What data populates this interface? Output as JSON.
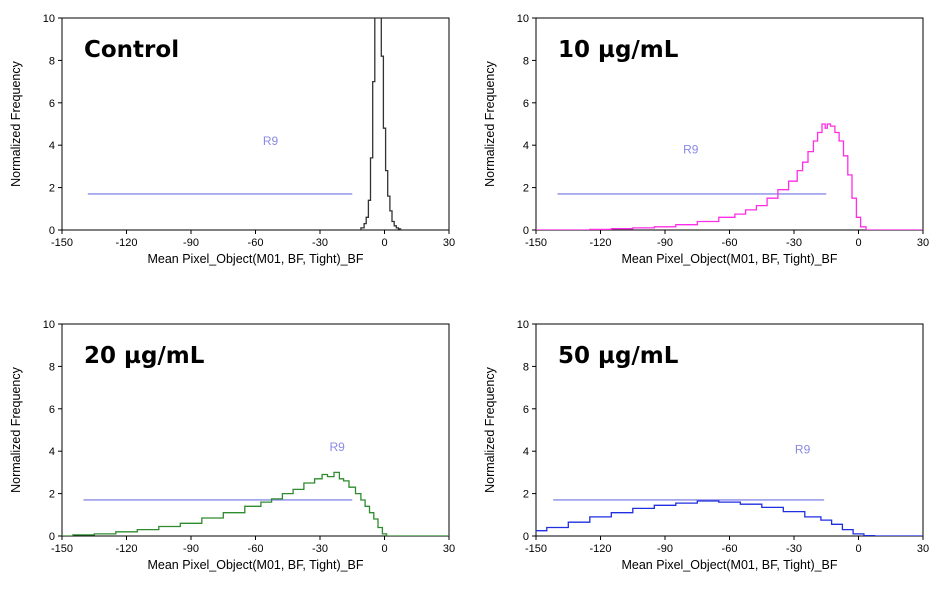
{
  "chart_data": [
    {
      "type": "line",
      "title": "Control",
      "xlabel": "Mean Pixel_Object(M01, BF, Tight)_BF",
      "ylabel": "Normalized Frequency",
      "xlim": [
        -150,
        30
      ],
      "ylim": [
        0,
        10
      ],
      "x_ticks": [
        "-150",
        "-120",
        "-90",
        "-60",
        "-30",
        "0",
        "30"
      ],
      "y_ticks": [
        "0",
        "2",
        "4",
        "6",
        "8",
        "10"
      ],
      "color": "#333333",
      "region": {
        "label": "R9",
        "x_start": -138,
        "x_end": -15,
        "y": 1.7,
        "label_x": -53,
        "label_y": 4.0,
        "color": "#8a8ae6"
      },
      "series": [
        {
          "x": [
            -30,
            -12,
            -10,
            -9,
            -8,
            -7,
            -6,
            -5,
            -4,
            -3,
            -2,
            -1,
            0,
            1,
            2,
            3,
            4,
            5,
            6,
            7,
            8,
            10,
            15,
            30
          ],
          "values": [
            0,
            0,
            0.1,
            0.3,
            0.6,
            1.4,
            3.4,
            7.0,
            10.5,
            11,
            10.6,
            8.2,
            4.8,
            2.8,
            1.6,
            0.9,
            0.4,
            0.2,
            0.1,
            0.05,
            0,
            0,
            0,
            0
          ]
        }
      ]
    },
    {
      "type": "line",
      "title": "10 µg/mL",
      "xlabel": "Mean Pixel_Object(M01, BF, Tight)_BF",
      "ylabel": "Normalized Frequency",
      "xlim": [
        -150,
        30
      ],
      "ylim": [
        0,
        10
      ],
      "x_ticks": [
        "-150",
        "-120",
        "-90",
        "-60",
        "-30",
        "0",
        "30"
      ],
      "y_ticks": [
        "0",
        "2",
        "4",
        "6",
        "8",
        "10"
      ],
      "color": "#ff2ee6",
      "region": {
        "label": "R9",
        "x_start": -140,
        "x_end": -15,
        "y": 1.7,
        "label_x": -78,
        "label_y": 3.6,
        "color": "#8a8ae6"
      },
      "series": [
        {
          "x": [
            -150,
            -130,
            -120,
            -110,
            -100,
            -90,
            -80,
            -70,
            -60,
            -55,
            -50,
            -45,
            -40,
            -35,
            -30,
            -27,
            -25,
            -22,
            -20,
            -18,
            -16,
            -15,
            -14,
            -12,
            -10,
            -8,
            -6,
            -4,
            -2,
            0,
            2,
            5,
            10,
            30
          ],
          "values": [
            0,
            0,
            0.03,
            0.06,
            0.1,
            0.15,
            0.25,
            0.4,
            0.6,
            0.75,
            0.95,
            1.15,
            1.5,
            1.9,
            2.3,
            2.8,
            3.2,
            3.7,
            4.2,
            4.6,
            5.0,
            4.8,
            5.0,
            4.9,
            4.6,
            4.2,
            3.5,
            2.6,
            1.5,
            0.6,
            0.15,
            0,
            0,
            0
          ]
        }
      ]
    },
    {
      "type": "line",
      "title": "20 µg/mL",
      "xlabel": "Mean Pixel_Object(M01, BF, Tight)_BF",
      "ylabel": "Normalized Frequency",
      "xlim": [
        -150,
        30
      ],
      "ylim": [
        0,
        10
      ],
      "x_ticks": [
        "-150",
        "-120",
        "-90",
        "-60",
        "-30",
        "0",
        "30"
      ],
      "y_ticks": [
        "0",
        "2",
        "4",
        "6",
        "8",
        "10"
      ],
      "color": "#2e8b2e",
      "region": {
        "label": "R9",
        "x_start": -140,
        "x_end": -15,
        "y": 1.7,
        "label_x": -22,
        "label_y": 4.0,
        "color": "#8a8ae6"
      },
      "series": [
        {
          "x": [
            -150,
            -140,
            -130,
            -120,
            -110,
            -100,
            -90,
            -80,
            -70,
            -60,
            -55,
            -50,
            -45,
            -40,
            -35,
            -30,
            -28,
            -25,
            -22,
            -20,
            -18,
            -15,
            -12,
            -10,
            -8,
            -6,
            -4,
            -2,
            0,
            2,
            5,
            30
          ],
          "values": [
            0,
            0.05,
            0.1,
            0.2,
            0.3,
            0.45,
            0.6,
            0.85,
            1.1,
            1.4,
            1.6,
            1.75,
            2.0,
            2.2,
            2.5,
            2.7,
            2.9,
            2.8,
            3.0,
            2.7,
            2.6,
            2.3,
            2.0,
            1.7,
            1.4,
            1.1,
            0.8,
            0.4,
            0.1,
            0,
            0,
            0
          ]
        }
      ]
    },
    {
      "type": "line",
      "title": "50 µg/mL",
      "xlabel": "Mean Pixel_Object(M01, BF, Tight)_BF",
      "ylabel": "Normalized Frequency",
      "xlim": [
        -150,
        30
      ],
      "ylim": [
        0,
        10
      ],
      "x_ticks": [
        "-150",
        "-120",
        "-90",
        "-60",
        "-30",
        "0",
        "30"
      ],
      "y_ticks": [
        "0",
        "2",
        "4",
        "6",
        "8",
        "10"
      ],
      "color": "#1f2ee0",
      "region": {
        "label": "R9",
        "x_start": -142,
        "x_end": -16,
        "y": 1.7,
        "label_x": -26,
        "label_y": 3.9,
        "color": "#8a8ae6"
      },
      "series": [
        {
          "x": [
            -150,
            -140,
            -130,
            -120,
            -110,
            -100,
            -90,
            -80,
            -70,
            -60,
            -50,
            -40,
            -30,
            -20,
            -15,
            -10,
            -5,
            0,
            5,
            10,
            20,
            30
          ],
          "values": [
            0.25,
            0.4,
            0.65,
            0.9,
            1.1,
            1.3,
            1.45,
            1.55,
            1.65,
            1.6,
            1.5,
            1.35,
            1.15,
            0.9,
            0.75,
            0.55,
            0.3,
            0.1,
            0.02,
            0,
            0,
            0
          ]
        }
      ]
    }
  ]
}
